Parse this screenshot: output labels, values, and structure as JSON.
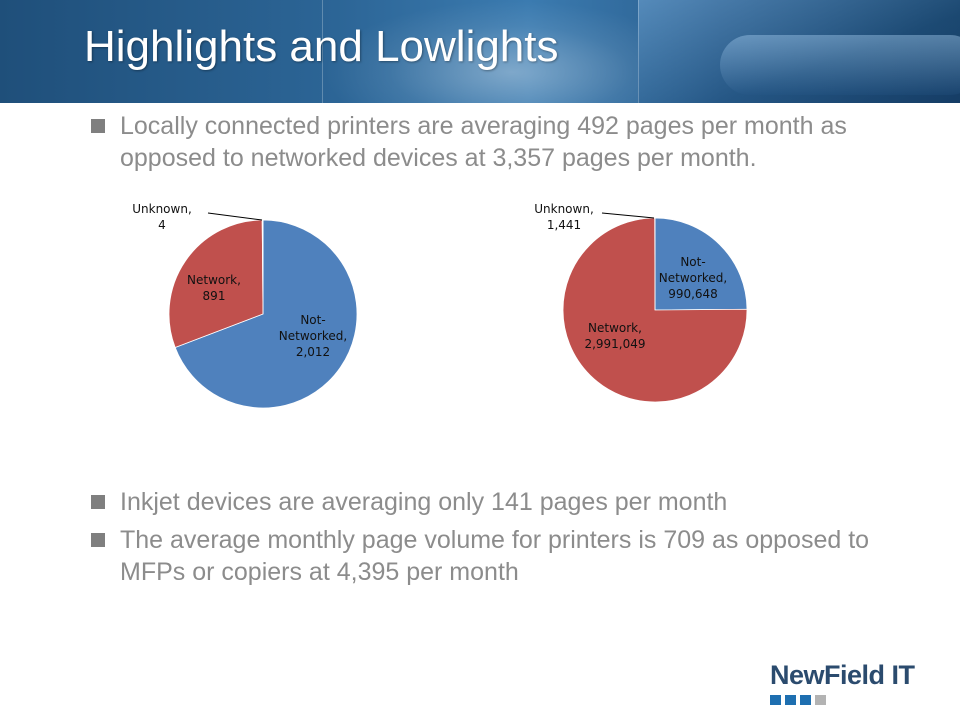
{
  "slide": {
    "title": "Highlights and Lowlights",
    "bullets": [
      "Locally connected printers are averaging 492 pages per month as opposed to networked devices at 3,357 pages per month.",
      "Inkjet devices are averaging only 141 pages per month",
      "The average monthly page volume for printers is 709 as opposed to MFPs or copiers at 4,395 per month"
    ]
  },
  "logo": {
    "text": "NewField  IT"
  },
  "colors": {
    "header": "#2c6596",
    "blue_slice": "#4f81bd",
    "red_slice": "#c0504d",
    "green_slice": "#9bbb59",
    "bullet_text": "#8c8c8c"
  },
  "chart_data": [
    {
      "type": "pie",
      "slices": [
        {
          "name": "Not-Networked",
          "value": 2012,
          "label_lines": [
            "Not-",
            "Networked,",
            "2,012"
          ]
        },
        {
          "name": "Network",
          "value": 891,
          "label_lines": [
            "Network,",
            "891"
          ]
        },
        {
          "name": "Unknown",
          "value": 4,
          "label_lines": [
            "Unknown,",
            "4"
          ]
        }
      ]
    },
    {
      "type": "pie",
      "slices": [
        {
          "name": "Not-Networked",
          "value": 990648,
          "label_lines": [
            "Not-",
            "Networked,",
            "990,648"
          ]
        },
        {
          "name": "Network",
          "value": 2991049,
          "label_lines": [
            "Network,",
            "2,991,049"
          ]
        },
        {
          "name": "Unknown",
          "value": 1441,
          "label_lines": [
            "Unknown,",
            "1,441"
          ]
        }
      ]
    }
  ]
}
